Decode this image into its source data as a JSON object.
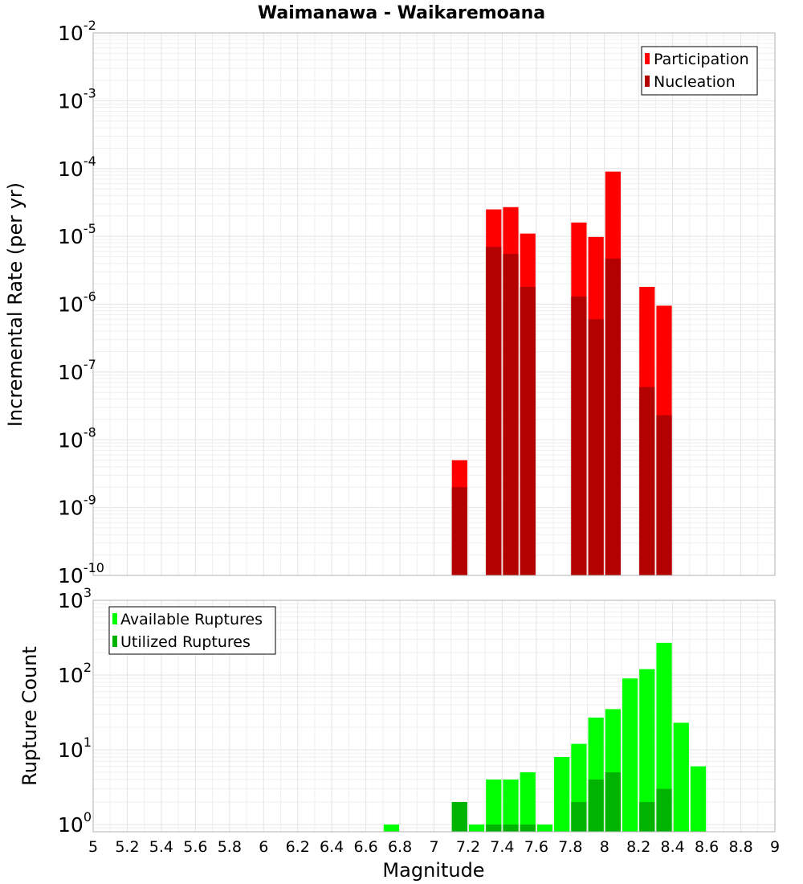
{
  "chart_data": [
    {
      "type": "bar",
      "title": "Waimanawa - Waikaremoana",
      "xlabel": "",
      "ylabel": "Incremental Rate (per yr)",
      "yscale": "log",
      "xlim": [
        5,
        9
      ],
      "ylim": [
        1e-10,
        0.01
      ],
      "bin_width": 0.1,
      "y_ticks": [
        {
          "base": "10",
          "exp": "-10",
          "value": 1e-10
        },
        {
          "base": "10",
          "exp": "-9",
          "value": 1e-09
        },
        {
          "base": "10",
          "exp": "-8",
          "value": 1e-08
        },
        {
          "base": "10",
          "exp": "-7",
          "value": 1e-07
        },
        {
          "base": "10",
          "exp": "-6",
          "value": 1e-06
        },
        {
          "base": "10",
          "exp": "-5",
          "value": 1e-05
        },
        {
          "base": "10",
          "exp": "-4",
          "value": 0.0001
        },
        {
          "base": "10",
          "exp": "-3",
          "value": 0.001
        },
        {
          "base": "10",
          "exp": "-2",
          "value": 0.01
        }
      ],
      "legend": {
        "placement": "top-right"
      },
      "series": [
        {
          "name": "Participation",
          "color": "#ff0000",
          "x": [
            7.15,
            7.35,
            7.45,
            7.55,
            7.85,
            7.95,
            8.05,
            8.25,
            8.35
          ],
          "values": [
            5e-09,
            2.5e-05,
            2.7e-05,
            1.1e-05,
            1.6e-05,
            9.8e-06,
            9e-05,
            1.8e-06,
            9.5e-07
          ]
        },
        {
          "name": "Nucleation",
          "color": "#b30000",
          "x": [
            7.15,
            7.35,
            7.45,
            7.55,
            7.85,
            7.95,
            8.05,
            8.25,
            8.35
          ],
          "values": [
            2e-09,
            7e-06,
            5.5e-06,
            1.8e-06,
            1.3e-06,
            6e-07,
            4.7e-06,
            6e-08,
            2.3e-08
          ]
        }
      ]
    },
    {
      "type": "bar",
      "title": "",
      "xlabel": "Magnitude",
      "ylabel": "Rupture Count",
      "yscale": "log",
      "xlim": [
        5,
        9
      ],
      "ylim": [
        0.8,
        1000
      ],
      "bin_width": 0.1,
      "x_ticks": [
        "5",
        "5.2",
        "5.4",
        "5.6",
        "5.8",
        "6",
        "6.2",
        "6.4",
        "6.6",
        "6.8",
        "7",
        "7.2",
        "7.4",
        "7.6",
        "7.8",
        "8",
        "8.2",
        "8.4",
        "8.6",
        "8.8",
        "9"
      ],
      "y_ticks": [
        {
          "base": "10",
          "exp": "0",
          "value": 1
        },
        {
          "base": "10",
          "exp": "1",
          "value": 10
        },
        {
          "base": "10",
          "exp": "2",
          "value": 100
        },
        {
          "base": "10",
          "exp": "3",
          "value": 1000
        }
      ],
      "legend": {
        "placement": "top-left"
      },
      "series": [
        {
          "name": "Available Ruptures",
          "color": "#00ff00",
          "x": [
            6.75,
            7.15,
            7.25,
            7.35,
            7.45,
            7.55,
            7.65,
            7.75,
            7.85,
            7.95,
            8.05,
            8.15,
            8.25,
            8.35,
            8.45,
            8.55
          ],
          "values": [
            1,
            2,
            1,
            4,
            4,
            5,
            1,
            8,
            12,
            27,
            35,
            90,
            120,
            270,
            23,
            6
          ]
        },
        {
          "name": "Utilized Ruptures",
          "color": "#00b300",
          "x": [
            7.15,
            7.35,
            7.45,
            7.55,
            7.85,
            7.95,
            8.05,
            8.25,
            8.35
          ],
          "values": [
            2,
            1,
            1,
            1,
            2,
            4,
            5,
            2,
            3
          ]
        }
      ]
    }
  ]
}
